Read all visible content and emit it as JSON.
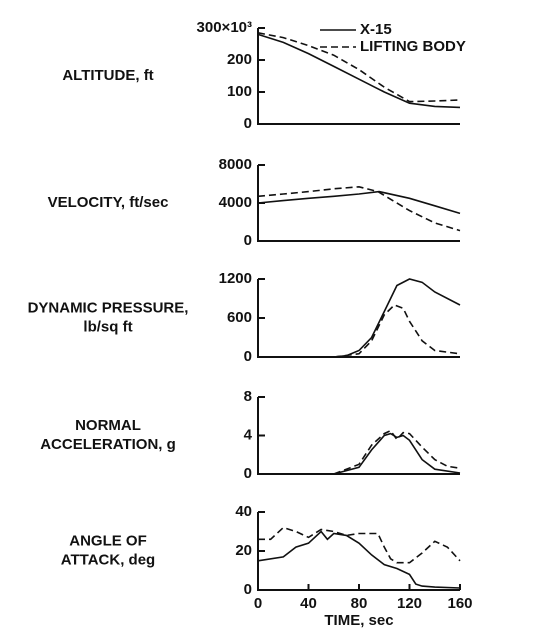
{
  "chart_data": [
    {
      "type": "line",
      "ylabel": [
        "ALTITUDE, ft"
      ],
      "xlim": [
        0,
        160
      ],
      "ylim": [
        0,
        300
      ],
      "yticks": [
        0,
        100,
        200,
        {
          "value": 300,
          "label": "300×10³"
        }
      ],
      "legend": "upper right",
      "series": [
        {
          "name": "X-15",
          "style": "solid",
          "color": "#111",
          "x": [
            0,
            20,
            40,
            60,
            80,
            100,
            120,
            140,
            160
          ],
          "values": [
            280,
            255,
            220,
            180,
            140,
            100,
            65,
            55,
            52
          ]
        },
        {
          "name": "LIFTING BODY",
          "style": "dashed",
          "color": "#111",
          "x": [
            0,
            20,
            40,
            60,
            80,
            100,
            120,
            140,
            160
          ],
          "values": [
            285,
            270,
            245,
            215,
            170,
            115,
            70,
            72,
            75
          ]
        }
      ]
    },
    {
      "type": "line",
      "ylabel": [
        "VELOCITY, ft/sec"
      ],
      "xlim": [
        0,
        160
      ],
      "ylim": [
        0,
        8000
      ],
      "yticks": [
        0,
        4000,
        8000
      ],
      "series": [
        {
          "style": "solid",
          "color": "#111",
          "x": [
            0,
            20,
            40,
            60,
            80,
            96,
            120,
            140,
            160
          ],
          "values": [
            4000,
            4250,
            4500,
            4700,
            4950,
            5200,
            4500,
            3700,
            2900
          ]
        },
        {
          "style": "dashed",
          "color": "#111",
          "x": [
            0,
            20,
            40,
            60,
            80,
            95,
            120,
            140,
            160
          ],
          "values": [
            4700,
            4950,
            5200,
            5500,
            5700,
            5200,
            3200,
            1900,
            1100
          ]
        }
      ]
    },
    {
      "type": "line",
      "ylabel": [
        "DYNAMIC PRESSURE,",
        "lb/sq ft"
      ],
      "xlim": [
        0,
        160
      ],
      "ylim": [
        0,
        1200
      ],
      "yticks": [
        0,
        600,
        1200
      ],
      "series": [
        {
          "style": "solid",
          "color": "#111",
          "x": [
            60,
            70,
            80,
            90,
            100,
            110,
            120,
            130,
            140,
            160
          ],
          "values": [
            0,
            20,
            100,
            300,
            700,
            1100,
            1200,
            1150,
            1000,
            800
          ]
        },
        {
          "style": "dashed",
          "color": "#111",
          "x": [
            60,
            80,
            90,
            100,
            108,
            115,
            120,
            130,
            140,
            160
          ],
          "values": [
            0,
            50,
            250,
            650,
            800,
            750,
            550,
            250,
            100,
            50
          ]
        }
      ]
    },
    {
      "type": "line",
      "ylabel": [
        "NORMAL",
        "ACCELERATION, g"
      ],
      "xlim": [
        0,
        160
      ],
      "ylim": [
        0,
        8
      ],
      "yticks": [
        0,
        4,
        8
      ],
      "series": [
        {
          "style": "solid",
          "color": "#111",
          "x": [
            60,
            80,
            90,
            100,
            105,
            110,
            115,
            120,
            130,
            140,
            160
          ],
          "values": [
            0,
            0.7,
            2.5,
            4.0,
            4.2,
            3.8,
            4.0,
            3.5,
            1.5,
            0.5,
            0.1
          ]
        },
        {
          "style": "dashed",
          "color": "#111",
          "x": [
            60,
            80,
            90,
            100,
            105,
            110,
            115,
            120,
            130,
            140,
            150,
            160
          ],
          "values": [
            0,
            1,
            3,
            4.2,
            4.5,
            3.6,
            4.3,
            4.2,
            2.8,
            1.5,
            0.8,
            0.6
          ]
        }
      ]
    },
    {
      "type": "line",
      "ylabel": [
        "ANGLE OF",
        "ATTACK, deg"
      ],
      "xlabel": "TIME, sec",
      "xlim": [
        0,
        160
      ],
      "ylim": [
        0,
        40
      ],
      "yticks": [
        0,
        20,
        40
      ],
      "xticks": [
        0,
        40,
        80,
        120,
        160
      ],
      "series": [
        {
          "style": "solid",
          "color": "#111",
          "x": [
            0,
            20,
            30,
            40,
            50,
            55,
            60,
            70,
            80,
            90,
            100,
            110,
            120,
            125,
            130,
            140,
            160
          ],
          "values": [
            15,
            17,
            22,
            24,
            30,
            26,
            29,
            28,
            24,
            18,
            13,
            11,
            8,
            3,
            2,
            1.5,
            1
          ]
        },
        {
          "style": "dashed",
          "color": "#111",
          "x": [
            0,
            10,
            20,
            30,
            40,
            50,
            60,
            70,
            80,
            95,
            100,
            105,
            110,
            120,
            130,
            140,
            150,
            160
          ],
          "values": [
            26,
            26,
            32,
            30,
            27,
            31,
            30,
            28,
            29,
            29,
            22,
            16,
            14,
            14,
            19,
            25,
            22,
            15
          ]
        }
      ]
    }
  ]
}
